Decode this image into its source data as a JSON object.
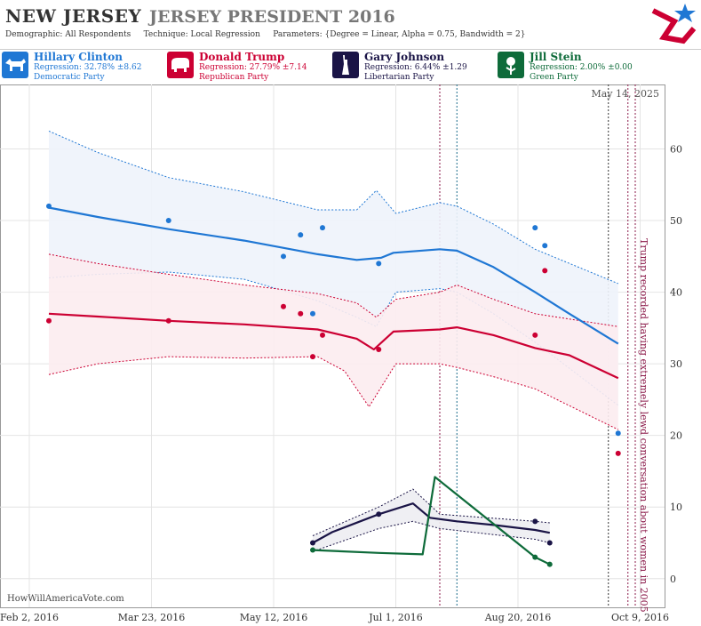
{
  "header": {
    "state": "NEW JERSEY",
    "race": "JERSEY PRESIDENT 2016",
    "demographic_label": "Demographic:",
    "demographic": "All Respondents",
    "technique_label": "Technique:",
    "technique": "Local Regression",
    "parameters_label": "Parameters:",
    "parameters": "{Degree = Linear, Alpha = 0.75, Bandwidth = 2}"
  },
  "candidates": [
    {
      "name": "Hillary Clinton",
      "regression": "Regression: 32.78% ±8.62",
      "party": "Democratic Party",
      "color": "#1f77d4",
      "icon": "donkey-icon"
    },
    {
      "name": "Donald Trump",
      "regression": "Regression: 27.79% ±7.14",
      "party": "Republican Party",
      "color": "#cc0033",
      "icon": "elephant-icon"
    },
    {
      "name": "Gary Johnson",
      "regression": "Regression: 6.44% ±1.29",
      "party": "Libertarian Party",
      "color": "#1a1446",
      "icon": "liberty-icon"
    },
    {
      "name": "Jill Stein",
      "regression": "Regression: 2.00% ±0.00",
      "party": "Green Party",
      "color": "#0e6b3a",
      "icon": "flower-icon"
    }
  ],
  "watermark": "HowWillAmericaVote.com",
  "date_stamp": "May 14, 2025",
  "chart_data": {
    "type": "line",
    "x_type": "date",
    "xlim": [
      "2016-01-21",
      "2016-10-19"
    ],
    "ylim": [
      -4,
      69
    ],
    "y_ticks": [
      0,
      10,
      20,
      30,
      40,
      50,
      60
    ],
    "x_ticks": [
      {
        "date": "2016-02-02",
        "label": "Feb 2, 2016"
      },
      {
        "date": "2016-03-23",
        "label": "Mar 23, 2016"
      },
      {
        "date": "2016-05-12",
        "label": "May 12, 2016"
      },
      {
        "date": "2016-07-01",
        "label": "Jul 1, 2016"
      },
      {
        "date": "2016-08-20",
        "label": "Aug 20, 2016"
      },
      {
        "date": "2016-10-09",
        "label": "Oct 9, 2016"
      }
    ],
    "grid": true,
    "annotation": {
      "text": "Trump recorded having extremely lewd conversation about women in 2005",
      "date": "2016-10-07"
    },
    "event_lines": [
      {
        "date": "2016-07-19",
        "color": "#8b1a4a"
      },
      {
        "date": "2016-07-26",
        "color": "#1a6b8a"
      },
      {
        "date": "2016-09-26",
        "color": "#333333"
      },
      {
        "date": "2016-10-04",
        "color": "#8b1a4a"
      },
      {
        "date": "2016-10-07",
        "color": "#8b1a4a"
      }
    ],
    "series": [
      {
        "name": "Hillary Clinton",
        "color": "#1f77d4",
        "band_fill": "#eef3fb",
        "points": [
          [
            "2016-02-10",
            52
          ],
          [
            "2016-03-30",
            50
          ],
          [
            "2016-05-16",
            45
          ],
          [
            "2016-05-23",
            48
          ],
          [
            "2016-05-28",
            37
          ],
          [
            "2016-06-01",
            49
          ],
          [
            "2016-06-24",
            44
          ],
          [
            "2016-08-27",
            49
          ],
          [
            "2016-08-31",
            46.5
          ],
          [
            "2016-09-30",
            20.3
          ]
        ],
        "line": [
          [
            "2016-02-10",
            51.8
          ],
          [
            "2016-03-01",
            50.5
          ],
          [
            "2016-03-30",
            48.8
          ],
          [
            "2016-04-30",
            47.2
          ],
          [
            "2016-05-30",
            45.3
          ],
          [
            "2016-06-15",
            44.5
          ],
          [
            "2016-06-25",
            44.8
          ],
          [
            "2016-06-30",
            45.5
          ],
          [
            "2016-07-19",
            46.0
          ],
          [
            "2016-07-26",
            45.8
          ],
          [
            "2016-08-10",
            43.5
          ],
          [
            "2016-08-27",
            40.0
          ],
          [
            "2016-09-10",
            37.0
          ],
          [
            "2016-09-30",
            32.8
          ]
        ],
        "upper": [
          [
            "2016-02-10",
            62.5
          ],
          [
            "2016-03-01",
            59.5
          ],
          [
            "2016-03-30",
            56
          ],
          [
            "2016-04-30",
            54
          ],
          [
            "2016-05-30",
            51.5
          ],
          [
            "2016-06-15",
            51.5
          ],
          [
            "2016-06-23",
            54.2
          ],
          [
            "2016-07-01",
            51
          ],
          [
            "2016-07-19",
            52.5
          ],
          [
            "2016-07-26",
            52
          ],
          [
            "2016-08-10",
            49.5
          ],
          [
            "2016-08-27",
            46
          ],
          [
            "2016-09-30",
            41.2
          ]
        ],
        "lower": [
          [
            "2016-02-10",
            42
          ],
          [
            "2016-03-01",
            42.5
          ],
          [
            "2016-03-30",
            42.8
          ],
          [
            "2016-04-30",
            41.8
          ],
          [
            "2016-05-30",
            38.8
          ],
          [
            "2016-06-15",
            36.5
          ],
          [
            "2016-06-23",
            35.2
          ],
          [
            "2016-07-01",
            40
          ],
          [
            "2016-07-19",
            40.5
          ],
          [
            "2016-07-26",
            40
          ],
          [
            "2016-08-10",
            37
          ],
          [
            "2016-08-27",
            33
          ],
          [
            "2016-09-30",
            24.2
          ]
        ]
      },
      {
        "name": "Donald Trump",
        "color": "#cc0033",
        "band_fill": "#fcecef",
        "points": [
          [
            "2016-02-10",
            36
          ],
          [
            "2016-03-30",
            36
          ],
          [
            "2016-05-16",
            38
          ],
          [
            "2016-05-23",
            37
          ],
          [
            "2016-05-28",
            31
          ],
          [
            "2016-06-01",
            34
          ],
          [
            "2016-06-24",
            32
          ],
          [
            "2016-08-27",
            34
          ],
          [
            "2016-08-31",
            43
          ],
          [
            "2016-09-30",
            17.5
          ]
        ],
        "line": [
          [
            "2016-02-10",
            37
          ],
          [
            "2016-03-01",
            36.6
          ],
          [
            "2016-03-30",
            36
          ],
          [
            "2016-04-30",
            35.5
          ],
          [
            "2016-05-30",
            34.8
          ],
          [
            "2016-06-15",
            33.5
          ],
          [
            "2016-06-22",
            32
          ],
          [
            "2016-06-30",
            34.5
          ],
          [
            "2016-07-19",
            34.8
          ],
          [
            "2016-07-26",
            35.1
          ],
          [
            "2016-08-10",
            34
          ],
          [
            "2016-08-27",
            32.2
          ],
          [
            "2016-09-10",
            31.2
          ],
          [
            "2016-09-30",
            28
          ]
        ],
        "upper": [
          [
            "2016-02-10",
            45.3
          ],
          [
            "2016-03-01",
            44
          ],
          [
            "2016-03-30",
            42.5
          ],
          [
            "2016-04-30",
            41
          ],
          [
            "2016-05-30",
            39.8
          ],
          [
            "2016-06-15",
            38.5
          ],
          [
            "2016-06-23",
            36.5
          ],
          [
            "2016-07-01",
            39
          ],
          [
            "2016-07-19",
            40
          ],
          [
            "2016-07-26",
            41
          ],
          [
            "2016-08-10",
            39
          ],
          [
            "2016-08-27",
            37
          ],
          [
            "2016-09-30",
            35.2
          ]
        ],
        "lower": [
          [
            "2016-02-10",
            28.5
          ],
          [
            "2016-03-01",
            30
          ],
          [
            "2016-03-30",
            31
          ],
          [
            "2016-04-30",
            30.8
          ],
          [
            "2016-05-30",
            31
          ],
          [
            "2016-06-10",
            29
          ],
          [
            "2016-06-20",
            24
          ],
          [
            "2016-07-01",
            30
          ],
          [
            "2016-07-19",
            30
          ],
          [
            "2016-07-26",
            29.5
          ],
          [
            "2016-08-10",
            28.2
          ],
          [
            "2016-08-27",
            26.5
          ],
          [
            "2016-09-30",
            20.8
          ]
        ]
      },
      {
        "name": "Gary Johnson",
        "color": "#1a1446",
        "band_fill": "#ededf2",
        "points": [
          [
            "2016-05-28",
            5
          ],
          [
            "2016-06-24",
            9
          ],
          [
            "2016-08-27",
            8
          ],
          [
            "2016-09-02",
            5
          ]
        ],
        "line": [
          [
            "2016-05-28",
            5
          ],
          [
            "2016-06-05",
            6.5
          ],
          [
            "2016-06-24",
            9
          ],
          [
            "2016-07-08",
            10.5
          ],
          [
            "2016-07-15",
            8.5
          ],
          [
            "2016-07-26",
            8
          ],
          [
            "2016-08-10",
            7.5
          ],
          [
            "2016-08-27",
            6.8
          ],
          [
            "2016-09-02",
            6.4
          ]
        ],
        "upper": [
          [
            "2016-05-28",
            6
          ],
          [
            "2016-06-24",
            10
          ],
          [
            "2016-07-08",
            12.5
          ],
          [
            "2016-07-19",
            9
          ],
          [
            "2016-08-27",
            8
          ],
          [
            "2016-09-02",
            7.8
          ]
        ],
        "lower": [
          [
            "2016-05-28",
            3.8
          ],
          [
            "2016-06-24",
            7
          ],
          [
            "2016-07-08",
            8
          ],
          [
            "2016-07-19",
            7
          ],
          [
            "2016-08-27",
            5.5
          ],
          [
            "2016-09-02",
            5
          ]
        ]
      },
      {
        "name": "Jill Stein",
        "color": "#0e6b3a",
        "band_fill": "#e9f4ee",
        "points": [
          [
            "2016-05-28",
            4
          ],
          [
            "2016-08-27",
            3
          ],
          [
            "2016-09-02",
            2
          ]
        ],
        "line": [
          [
            "2016-05-28",
            4
          ],
          [
            "2016-06-24",
            3.6
          ],
          [
            "2016-07-12",
            3.4
          ],
          [
            "2016-07-17",
            14.2
          ],
          [
            "2016-08-27",
            3
          ],
          [
            "2016-09-02",
            2
          ]
        ],
        "upper": [],
        "lower": []
      }
    ]
  }
}
